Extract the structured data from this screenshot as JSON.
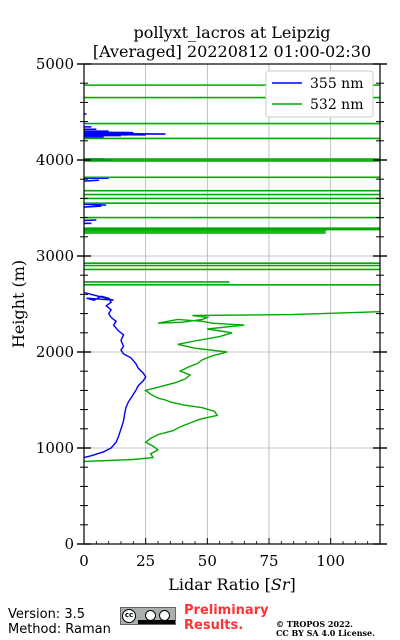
{
  "chart_data": {
    "type": "line",
    "title": "pollyxt_lacros at Leipzig",
    "subtitle": "[Averaged] 20220812 01:00-02:30",
    "xlabel": "Lidar Ratio [",
    "xlabel_unit": "Sr",
    "xlabel_close": "]",
    "ylabel": "Height (m)",
    "xlim": [
      0,
      120
    ],
    "ylim": [
      0,
      5000
    ],
    "x_ticks": [
      0,
      25,
      50,
      75,
      100
    ],
    "x_tick_labels": [
      "0",
      "25",
      "50",
      "75",
      "100"
    ],
    "y_ticks": [
      0,
      1000,
      2000,
      3000,
      4000,
      5000
    ],
    "y_tick_labels": [
      "0",
      "1000",
      "2000",
      "3000",
      "4000",
      "5000"
    ],
    "grid": true,
    "legend_position": "top-right",
    "series": [
      {
        "name": "355 nm",
        "color": "#0000ff",
        "points": [
          [
            0,
            900
          ],
          [
            3,
            920
          ],
          [
            8,
            960
          ],
          [
            11,
            1000
          ],
          [
            13,
            1060
          ],
          [
            14,
            1120
          ],
          [
            15,
            1200
          ],
          [
            16,
            1280
          ],
          [
            16.5,
            1360
          ],
          [
            17,
            1420
          ],
          [
            18,
            1480
          ],
          [
            19.5,
            1540
          ],
          [
            21,
            1600
          ],
          [
            22,
            1650
          ],
          [
            24,
            1700
          ],
          [
            25,
            1740
          ],
          [
            24,
            1780
          ],
          [
            22,
            1830
          ],
          [
            21,
            1880
          ],
          [
            19,
            1940
          ],
          [
            16,
            1980
          ],
          [
            15,
            2020
          ],
          [
            16,
            2060
          ],
          [
            15,
            2120
          ],
          [
            16,
            2180
          ],
          [
            14,
            2220
          ],
          [
            12,
            2280
          ],
          [
            13,
            2320
          ],
          [
            11,
            2360
          ],
          [
            10,
            2400
          ],
          [
            11,
            2440
          ],
          [
            9,
            2480
          ],
          [
            11,
            2520
          ],
          [
            10,
            2560
          ],
          [
            7,
            2580
          ],
          [
            4,
            2540
          ],
          [
            1,
            2560
          ],
          [
            12,
            2540
          ],
          [
            3,
            2600
          ],
          [
            0,
            2620
          ]
        ],
        "segments": [
          [
            [
              0,
              3340
            ],
            [
              3,
              3340
            ]
          ],
          [
            [
              0,
              3370
            ],
            [
              5,
              3375
            ]
          ],
          [
            [
              0,
              3510
            ],
            [
              7,
              3520
            ]
          ],
          [
            [
              0,
              3540
            ],
            [
              9,
              3530
            ]
          ],
          [
            [
              0,
              3780
            ],
            [
              6,
              3790
            ]
          ],
          [
            [
              0,
              3810
            ],
            [
              10,
              3810
            ]
          ],
          [
            [
              0,
              3995
            ],
            [
              11,
              3995
            ]
          ],
          [
            [
              0,
              4010
            ],
            [
              8,
              4010
            ]
          ],
          [
            [
              0,
              4240
            ],
            [
              8,
              4240
            ]
          ],
          [
            [
              0,
              4255
            ],
            [
              15,
              4255
            ]
          ],
          [
            [
              0,
              4265
            ],
            [
              25,
              4262
            ]
          ],
          [
            [
              0,
              4275
            ],
            [
              33,
              4270
            ]
          ],
          [
            [
              0,
              4290
            ],
            [
              20,
              4285
            ]
          ],
          [
            [
              0,
              4300
            ],
            [
              10,
              4300
            ]
          ],
          [
            [
              0,
              4320
            ],
            [
              5,
              4320
            ]
          ],
          [
            [
              0,
              4345
            ],
            [
              3,
              4345
            ]
          ],
          [
            [
              0,
              4480
            ],
            [
              1,
              4480
            ]
          ]
        ]
      },
      {
        "name": "532 nm",
        "color": "#00aa00",
        "points": [
          [
            0,
            860
          ],
          [
            10,
            870
          ],
          [
            20,
            880
          ],
          [
            28,
            900
          ],
          [
            27,
            940
          ],
          [
            30,
            980
          ],
          [
            28,
            1020
          ],
          [
            25,
            1060
          ],
          [
            27,
            1100
          ],
          [
            30,
            1140
          ],
          [
            36,
            1180
          ],
          [
            39,
            1220
          ],
          [
            43,
            1260
          ],
          [
            47,
            1300
          ],
          [
            54,
            1340
          ],
          [
            53,
            1380
          ],
          [
            48,
            1420
          ],
          [
            40,
            1450
          ],
          [
            35,
            1480
          ],
          [
            33,
            1500
          ],
          [
            30,
            1520
          ],
          [
            27,
            1560
          ],
          [
            25,
            1600
          ],
          [
            31,
            1640
          ],
          [
            37,
            1680
          ],
          [
            41,
            1720
          ],
          [
            43,
            1760
          ],
          [
            39,
            1800
          ],
          [
            42,
            1840
          ],
          [
            46,
            1880
          ],
          [
            48,
            1920
          ],
          [
            52,
            1960
          ],
          [
            55,
            1980
          ],
          [
            58,
            2000
          ],
          [
            45,
            2040
          ],
          [
            38,
            2080
          ],
          [
            46,
            2120
          ],
          [
            55,
            2160
          ],
          [
            60,
            2200
          ],
          [
            50,
            2240
          ],
          [
            65,
            2280
          ],
          [
            52,
            2300
          ],
          [
            48,
            2320
          ],
          [
            38,
            2340
          ],
          [
            30,
            2300
          ],
          [
            40,
            2310
          ],
          [
            48,
            2340
          ],
          [
            50,
            2360
          ],
          [
            44,
            2380
          ],
          [
            84,
            2390
          ],
          [
            120,
            2420
          ]
        ],
        "segments": [
          [
            [
              0,
              2700
            ],
            [
              120,
              2700
            ]
          ],
          [
            [
              0,
              2730
            ],
            [
              59,
              2730
            ]
          ],
          [
            [
              0,
              2860
            ],
            [
              120,
              2860
            ]
          ],
          [
            [
              0,
              2900
            ],
            [
              120,
              2900
            ]
          ],
          [
            [
              0,
              2925
            ],
            [
              120,
              2925
            ]
          ],
          [
            [
              0,
              3240
            ],
            [
              98,
              3240
            ]
          ],
          [
            [
              0,
              3260
            ],
            [
              98,
              3260
            ]
          ],
          [
            [
              0,
              3275
            ],
            [
              120,
              3275
            ]
          ],
          [
            [
              0,
              3290
            ],
            [
              120,
              3290
            ]
          ],
          [
            [
              0,
              3400
            ],
            [
              120,
              3400
            ]
          ],
          [
            [
              0,
              3550
            ],
            [
              120,
              3550
            ]
          ],
          [
            [
              0,
              3600
            ],
            [
              120,
              3600
            ]
          ],
          [
            [
              0,
              3640
            ],
            [
              120,
              3640
            ]
          ],
          [
            [
              0,
              3680
            ],
            [
              120,
              3680
            ]
          ],
          [
            [
              0,
              3820
            ],
            [
              120,
              3820
            ]
          ],
          [
            [
              0,
              3990
            ],
            [
              120,
              3990
            ]
          ],
          [
            [
              0,
              4010
            ],
            [
              120,
              4010
            ]
          ],
          [
            [
              0,
              4225
            ],
            [
              120,
              4225
            ]
          ],
          [
            [
              0,
              4380
            ],
            [
              120,
              4380
            ]
          ],
          [
            [
              0,
              4650
            ],
            [
              120,
              4650
            ]
          ],
          [
            [
              0,
              4780
            ],
            [
              120,
              4780
            ]
          ]
        ]
      }
    ]
  },
  "footer": {
    "version": "Version: 3.5",
    "method": "Method: Raman",
    "preliminary_1": "Preliminary",
    "preliminary_2": "Results.",
    "copyright_1": "© TROPOS 2022.",
    "copyright_2": "CC BY SA 4.0 License.",
    "badge_cc": "cc"
  }
}
